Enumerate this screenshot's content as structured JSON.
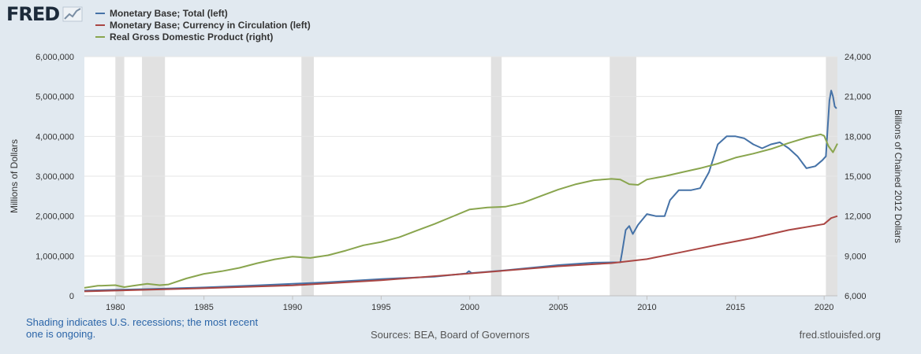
{
  "header": {
    "logo_text": "FRED",
    "logo_icon": "line-chart-icon"
  },
  "legend": [
    {
      "label": "Monetary Base; Total (left)",
      "color": "#4572a7"
    },
    {
      "label": "Monetary Base; Currency in Circulation (left)",
      "color": "#aa4643"
    },
    {
      "label": "Real Gross Domestic Product (right)",
      "color": "#89a54e"
    }
  ],
  "footer": {
    "note": "Shading indicates U.S. recessions; the most recent one is ongoing.",
    "sources": "Sources: BEA, Board of Governors",
    "url": "fred.stlouisfed.org"
  },
  "chart_data": {
    "type": "line",
    "xlim": [
      1978.25,
      2020.75
    ],
    "x_ticks": [
      "1980",
      "1985",
      "1990",
      "1995",
      "2000",
      "2005",
      "2010",
      "2015",
      "2020"
    ],
    "left_axis": {
      "label": "Millions of Dollars",
      "ylim": [
        0,
        6000000
      ],
      "ticks": [
        "0",
        "1,000,000",
        "2,000,000",
        "3,000,000",
        "4,000,000",
        "5,000,000",
        "6,000,000"
      ]
    },
    "right_axis": {
      "label": "Billions of Chained 2012 Dollars",
      "ylim": [
        6000,
        24000
      ],
      "ticks": [
        "6,000",
        "9,000",
        "12,000",
        "15,000",
        "18,000",
        "21,000",
        "24,000"
      ]
    },
    "recessions": [
      [
        1980.0,
        1980.5
      ],
      [
        1981.5,
        1982.8
      ],
      [
        1990.5,
        1991.2
      ],
      [
        2001.2,
        2001.8
      ],
      [
        2007.9,
        2009.4
      ],
      [
        2020.1,
        2020.75
      ]
    ],
    "grid": true,
    "series": [
      {
        "name": "Monetary Base; Total (left)",
        "axis": "left",
        "color": "#4572a7",
        "points": [
          [
            1978.25,
            130000
          ],
          [
            1980,
            150000
          ],
          [
            1982,
            170000
          ],
          [
            1985,
            210000
          ],
          [
            1988,
            260000
          ],
          [
            1990,
            300000
          ],
          [
            1992,
            340000
          ],
          [
            1995,
            420000
          ],
          [
            1998,
            480000
          ],
          [
            1999.8,
            560000
          ],
          [
            1999.95,
            620000
          ],
          [
            2000.1,
            570000
          ],
          [
            2002,
            640000
          ],
          [
            2005,
            770000
          ],
          [
            2007,
            830000
          ],
          [
            2008.5,
            840000
          ],
          [
            2008.6,
            1100000
          ],
          [
            2008.8,
            1650000
          ],
          [
            2009,
            1750000
          ],
          [
            2009.2,
            1550000
          ],
          [
            2009.5,
            1780000
          ],
          [
            2010,
            2050000
          ],
          [
            2010.5,
            2000000
          ],
          [
            2011,
            2000000
          ],
          [
            2011.3,
            2400000
          ],
          [
            2011.8,
            2650000
          ],
          [
            2012.5,
            2650000
          ],
          [
            2013,
            2700000
          ],
          [
            2013.5,
            3100000
          ],
          [
            2014,
            3800000
          ],
          [
            2014.5,
            4000000
          ],
          [
            2015,
            4000000
          ],
          [
            2015.5,
            3950000
          ],
          [
            2016,
            3800000
          ],
          [
            2016.5,
            3700000
          ],
          [
            2017,
            3800000
          ],
          [
            2017.5,
            3850000
          ],
          [
            2018,
            3700000
          ],
          [
            2018.5,
            3500000
          ],
          [
            2019,
            3200000
          ],
          [
            2019.5,
            3250000
          ],
          [
            2019.9,
            3400000
          ],
          [
            2020.1,
            3500000
          ],
          [
            2020.2,
            4200000
          ],
          [
            2020.3,
            4900000
          ],
          [
            2020.4,
            5150000
          ],
          [
            2020.5,
            5000000
          ],
          [
            2020.6,
            4750000
          ],
          [
            2020.7,
            4700000
          ]
        ]
      },
      {
        "name": "Monetary Base; Currency in Circulation (left)",
        "axis": "left",
        "color": "#aa4643",
        "points": [
          [
            1978.25,
            110000
          ],
          [
            1980,
            130000
          ],
          [
            1985,
            190000
          ],
          [
            1990,
            260000
          ],
          [
            1995,
            390000
          ],
          [
            2000,
            560000
          ],
          [
            2005,
            740000
          ],
          [
            2008,
            820000
          ],
          [
            2010,
            920000
          ],
          [
            2012,
            1100000
          ],
          [
            2014,
            1280000
          ],
          [
            2016,
            1450000
          ],
          [
            2018,
            1650000
          ],
          [
            2020,
            1800000
          ],
          [
            2020.4,
            1950000
          ],
          [
            2020.75,
            2000000
          ]
        ]
      },
      {
        "name": "Real Gross Domestic Product (right)",
        "axis": "right",
        "color": "#89a54e",
        "points": [
          [
            1978.25,
            6600
          ],
          [
            1979,
            6750
          ],
          [
            1980,
            6800
          ],
          [
            1980.5,
            6650
          ],
          [
            1981,
            6750
          ],
          [
            1981.8,
            6900
          ],
          [
            1982.5,
            6800
          ],
          [
            1983,
            6850
          ],
          [
            1984,
            7300
          ],
          [
            1985,
            7650
          ],
          [
            1986,
            7850
          ],
          [
            1987,
            8100
          ],
          [
            1988,
            8450
          ],
          [
            1989,
            8750
          ],
          [
            1990,
            8950
          ],
          [
            1991,
            8850
          ],
          [
            1992,
            9050
          ],
          [
            1993,
            9400
          ],
          [
            1994,
            9800
          ],
          [
            1995,
            10050
          ],
          [
            1996,
            10400
          ],
          [
            1997,
            10900
          ],
          [
            1998,
            11400
          ],
          [
            1999,
            11950
          ],
          [
            2000,
            12500
          ],
          [
            2001,
            12650
          ],
          [
            2002,
            12700
          ],
          [
            2003,
            13000
          ],
          [
            2004,
            13500
          ],
          [
            2005,
            14000
          ],
          [
            2006,
            14400
          ],
          [
            2007,
            14700
          ],
          [
            2008,
            14800
          ],
          [
            2008.5,
            14750
          ],
          [
            2009,
            14400
          ],
          [
            2009.5,
            14350
          ],
          [
            2010,
            14750
          ],
          [
            2011,
            15000
          ],
          [
            2012,
            15300
          ],
          [
            2013,
            15600
          ],
          [
            2014,
            15950
          ],
          [
            2015,
            16400
          ],
          [
            2016,
            16700
          ],
          [
            2017,
            17050
          ],
          [
            2018,
            17500
          ],
          [
            2019,
            17900
          ],
          [
            2019.8,
            18150
          ],
          [
            2020,
            18050
          ],
          [
            2020.25,
            17250
          ],
          [
            2020.5,
            16800
          ],
          [
            2020.75,
            17450
          ]
        ]
      }
    ]
  }
}
